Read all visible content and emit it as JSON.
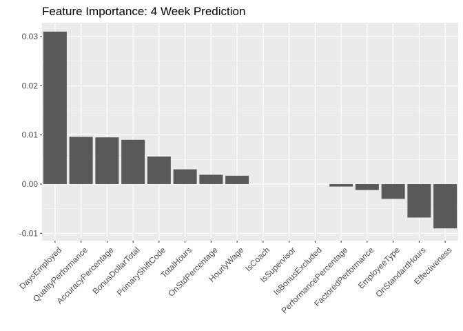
{
  "chart_data": {
    "type": "bar",
    "title": "Feature Importance: 4 Week Prediction",
    "xlabel": "",
    "ylabel": "",
    "categories": [
      "DaysEmployed",
      "QualityPerformance",
      "AccuracyPercentage",
      "BonusDollarTotal",
      "PrimaryShiftCode",
      "TotalHours",
      "OnStdPercentage",
      "HourlyWage",
      "IsCoach",
      "IsSupervisor",
      "IsBonusExcluded",
      "PerformancePercentage",
      "FactoredPerformance",
      "EmployeeType",
      "OnStandardHours",
      "Effectiveness"
    ],
    "values": [
      0.031,
      0.0096,
      0.0095,
      0.009,
      0.0056,
      0.003,
      0.0019,
      0.0017,
      0.0,
      0.0,
      0.0,
      -0.0005,
      -0.0012,
      -0.003,
      -0.0068,
      -0.009
    ],
    "ylim": [
      -0.0115,
      0.0328
    ],
    "yticks": [
      -0.01,
      0.0,
      0.01,
      0.02,
      0.03
    ],
    "ytick_labels": [
      "-0.01",
      "0.00",
      "0.01",
      "0.02",
      "0.03"
    ],
    "grid": true,
    "legend": "none",
    "colors": {
      "bar": "#595959",
      "panel": "#ebebeb",
      "grid_major": "#ffffff",
      "grid_minor": "#f5f5f5"
    }
  }
}
